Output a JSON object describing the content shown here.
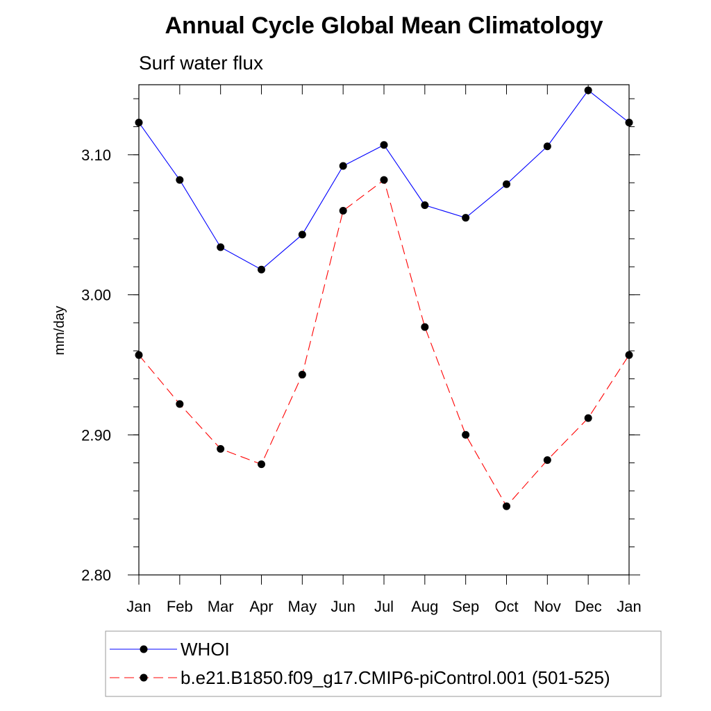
{
  "chart_data": {
    "type": "line",
    "title": "Annual Cycle Global Mean Climatology",
    "subtitle": "Surf water flux",
    "xlabel": "",
    "ylabel": "mm/day",
    "categories": [
      "Jan",
      "Feb",
      "Mar",
      "Apr",
      "May",
      "Jun",
      "Jul",
      "Aug",
      "Sep",
      "Oct",
      "Nov",
      "Dec",
      "Jan"
    ],
    "ylim": [
      2.8,
      3.15
    ],
    "yticks": [
      2.8,
      2.9,
      3.0,
      3.1
    ],
    "ytick_labels": [
      "2.80",
      "2.90",
      "3.00",
      "3.10"
    ],
    "series": [
      {
        "name": "WHOI",
        "color": "#0000ff",
        "style": "solid",
        "values": [
          3.123,
          3.082,
          3.034,
          3.018,
          3.043,
          3.092,
          3.107,
          3.064,
          3.055,
          3.079,
          3.106,
          3.146,
          3.123
        ]
      },
      {
        "name": "b.e21.B1850.f09_g17.CMIP6-piControl.001 (501-525)",
        "color": "#ff0000",
        "style": "dashed",
        "values": [
          2.957,
          2.922,
          2.89,
          2.879,
          2.943,
          3.06,
          3.082,
          2.977,
          2.9,
          2.849,
          2.882,
          2.912,
          2.957
        ]
      }
    ],
    "legend_position": "bottom"
  }
}
